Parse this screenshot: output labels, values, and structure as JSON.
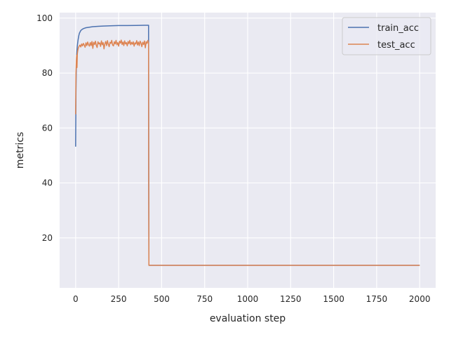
{
  "chart_data": {
    "type": "line",
    "title": "",
    "xlabel": "evaluation step",
    "ylabel": "metrics",
    "xlim": [
      -93,
      2093
    ],
    "ylim": [
      1.8,
      102
    ],
    "xticks": [
      0,
      250,
      500,
      750,
      1000,
      1250,
      1500,
      1750,
      2000
    ],
    "xtick_labels": [
      "0",
      "250",
      "500",
      "750",
      "1000",
      "1250",
      "1500",
      "1750",
      "2000"
    ],
    "yticks": [
      20,
      40,
      60,
      80,
      100
    ],
    "ytick_labels": [
      "20",
      "40",
      "60",
      "80",
      "100"
    ],
    "grid": true,
    "legend_position": "upper right",
    "series": [
      {
        "name": "train_acc",
        "color": "#4c72b0",
        "x": [
          0,
          2,
          4,
          6,
          8,
          10,
          14,
          18,
          22,
          26,
          30,
          40,
          50,
          60,
          80,
          100,
          130,
          160,
          200,
          250,
          300,
          350,
          400,
          424,
          425,
          426,
          427,
          2000
        ],
        "y": [
          53.2,
          73.0,
          82.0,
          86.5,
          88.5,
          90.0,
          92.0,
          93.5,
          94.5,
          95.0,
          95.5,
          96.0,
          96.3,
          96.5,
          96.7,
          96.9,
          97.0,
          97.1,
          97.2,
          97.3,
          97.3,
          97.35,
          97.4,
          97.4,
          40.0,
          10.0,
          10.0,
          10.0
        ]
      },
      {
        "name": "test_acc",
        "color": "#dd8452",
        "x": [
          0,
          2,
          4,
          6,
          8,
          10,
          12,
          15,
          20,
          25,
          30,
          35,
          40,
          45,
          50,
          55,
          60,
          65,
          70,
          75,
          80,
          85,
          90,
          95,
          100,
          105,
          110,
          115,
          120,
          125,
          130,
          135,
          140,
          145,
          150,
          155,
          160,
          165,
          170,
          175,
          180,
          185,
          190,
          195,
          200,
          205,
          210,
          215,
          220,
          225,
          230,
          235,
          240,
          245,
          250,
          255,
          260,
          265,
          270,
          275,
          280,
          285,
          290,
          295,
          300,
          305,
          310,
          315,
          320,
          325,
          330,
          335,
          340,
          345,
          350,
          355,
          360,
          365,
          370,
          375,
          380,
          385,
          390,
          395,
          400,
          405,
          410,
          415,
          420,
          424,
          425,
          426,
          427,
          2000
        ],
        "y": [
          65.0,
          80.0,
          84.0,
          86.5,
          82.0,
          87.0,
          88.0,
          89.0,
          89.8,
          90.2,
          89.5,
          90.6,
          89.9,
          90.8,
          90.2,
          89.4,
          91.0,
          90.0,
          91.3,
          90.3,
          89.8,
          91.1,
          90.0,
          91.5,
          89.0,
          91.2,
          90.4,
          91.6,
          90.1,
          89.3,
          91.4,
          90.6,
          91.0,
          89.7,
          91.7,
          90.3,
          91.1,
          88.8,
          90.7,
          91.5,
          90.0,
          91.8,
          90.5,
          89.6,
          91.2,
          90.8,
          91.9,
          90.2,
          89.9,
          91.4,
          90.6,
          91.9,
          90.3,
          91.1,
          89.8,
          91.6,
          90.9,
          92.0,
          90.4,
          91.3,
          90.0,
          91.7,
          90.6,
          91.1,
          89.9,
          91.5,
          90.7,
          91.9,
          90.3,
          91.2,
          90.5,
          91.4,
          89.8,
          91.0,
          90.6,
          91.8,
          90.2,
          91.3,
          90.0,
          91.6,
          90.9,
          89.6,
          91.2,
          90.4,
          91.7,
          89.2,
          91.4,
          90.8,
          91.9,
          91.0,
          40.0,
          10.0,
          10.0,
          10.0
        ]
      }
    ]
  }
}
